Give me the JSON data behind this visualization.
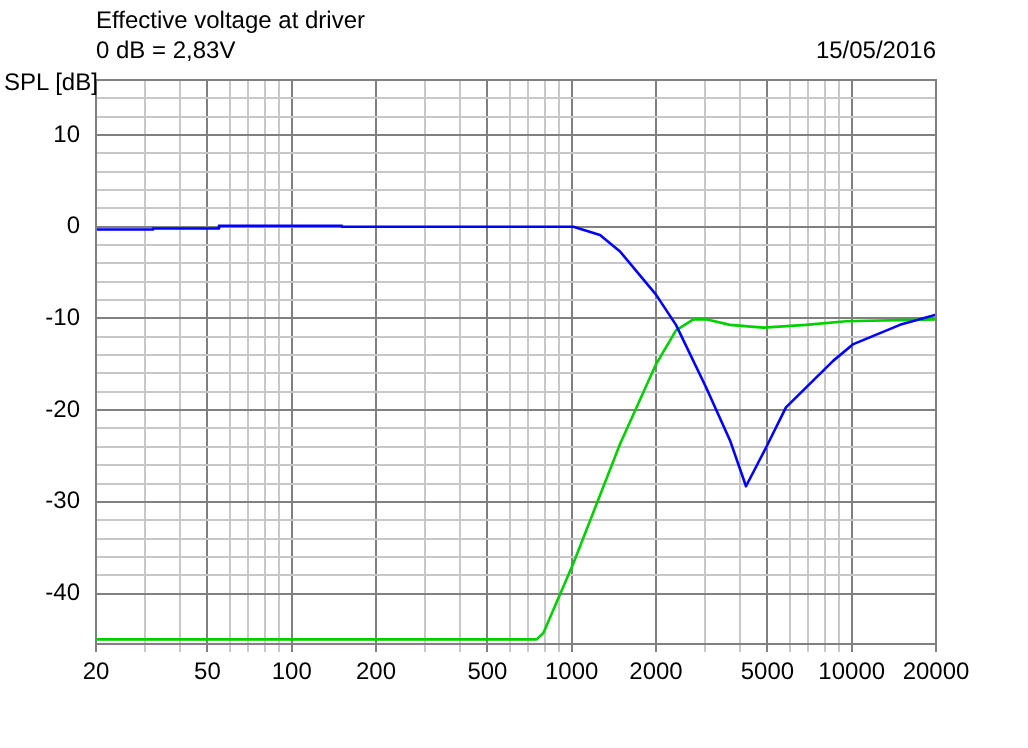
{
  "chart_data": {
    "type": "line",
    "title": "Effective voltage at driver",
    "subtitle": "0 dB = 2,83V",
    "ylabel": "SPL [dB]",
    "annotations": [
      "15/05/2016"
    ],
    "log": "x",
    "grid": true,
    "legend": false,
    "marker": "none",
    "line_style": "solid",
    "xlim": [
      20,
      20000
    ],
    "ylim": [
      -45.5,
      16
    ],
    "xticks": [
      20,
      {
        "value": 30,
        "label": null
      },
      {
        "value": 40,
        "label": null
      },
      50,
      {
        "value": 60,
        "label": null
      },
      {
        "value": 70,
        "label": null
      },
      {
        "value": 80,
        "label": null
      },
      {
        "value": 90,
        "label": null
      },
      100,
      200,
      {
        "value": 300,
        "label": null
      },
      {
        "value": 400,
        "label": null
      },
      500,
      {
        "value": 600,
        "label": null
      },
      {
        "value": 700,
        "label": null
      },
      {
        "value": 800,
        "label": null
      },
      {
        "value": 900,
        "label": null
      },
      1000,
      2000,
      {
        "value": 3000,
        "label": null
      },
      {
        "value": 4000,
        "label": null
      },
      5000,
      {
        "value": 6000,
        "label": null
      },
      {
        "value": 7000,
        "label": null
      },
      {
        "value": 8000,
        "label": null
      },
      {
        "value": 9000,
        "label": null
      },
      10000,
      20000
    ],
    "yticks": [
      -40,
      {
        "value": -38,
        "label": null
      },
      {
        "value": -36,
        "label": null
      },
      {
        "value": -34,
        "label": null
      },
      {
        "value": -32,
        "label": null
      },
      -30,
      {
        "value": -28,
        "label": null
      },
      {
        "value": -26,
        "label": null
      },
      {
        "value": -24,
        "label": null
      },
      {
        "value": -22,
        "label": null
      },
      -20,
      {
        "value": -18,
        "label": null
      },
      {
        "value": -16,
        "label": null
      },
      {
        "value": -14,
        "label": null
      },
      {
        "value": -12,
        "label": null
      },
      -10,
      {
        "value": -8,
        "label": null
      },
      {
        "value": -6,
        "label": null
      },
      {
        "value": -4,
        "label": null
      },
      {
        "value": -2,
        "label": null
      },
      0,
      {
        "value": 2,
        "label": null
      },
      {
        "value": 4,
        "label": null
      },
      {
        "value": 6,
        "label": null
      },
      {
        "value": 8,
        "label": null
      },
      10,
      {
        "value": 12,
        "label": null
      },
      {
        "value": 14,
        "label": null
      }
    ],
    "series": [
      {
        "color": "#0000ff",
        "x": [
          20,
          32,
          32,
          55,
          55,
          151,
          151,
          990,
          1014,
          1262,
          1488,
          2000,
          2357,
          3018,
          3676,
          4192,
          4940,
          5823,
          8600,
          10140,
          14870,
          20000
        ],
        "values": [
          -0.3,
          -0.3,
          -0.2,
          -0.2,
          0.1,
          0.1,
          0,
          0,
          0,
          -0.9,
          -2.7,
          -7.4,
          -10.7,
          -17.5,
          -23.3,
          -28.3,
          -24.1,
          -19.7,
          -14.6,
          -12.8,
          -10.7,
          -9.6
        ]
      },
      {
        "color": "#00d000",
        "x": [
          20,
          750,
          792,
          1014,
          1488,
          2000,
          2357,
          2720,
          3018,
          3676,
          4840,
          6870,
          9550,
          20000
        ],
        "values": [
          -45,
          -45,
          -44.3,
          -36.7,
          -23.7,
          -15,
          -11.3,
          -10.1,
          -10.1,
          -10.7,
          -11,
          -10.7,
          -10.3,
          -10.1
        ]
      }
    ]
  }
}
